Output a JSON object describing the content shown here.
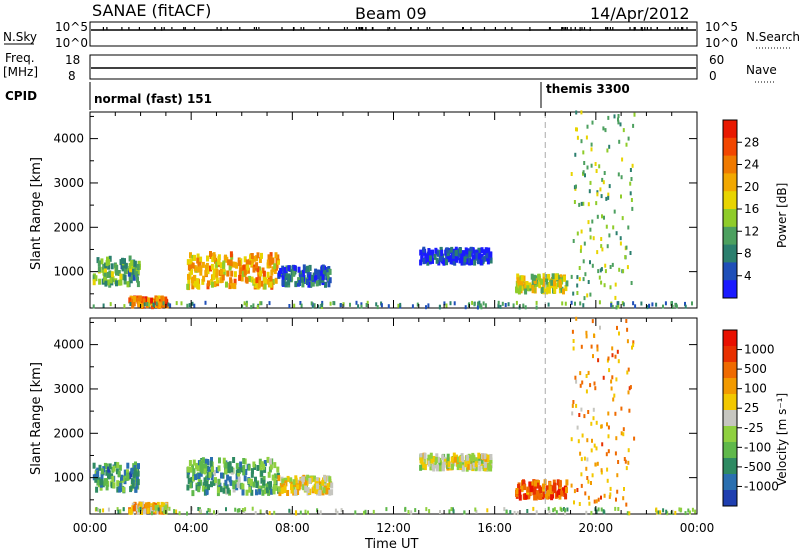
{
  "header": {
    "station": "SANAE (fitACF)",
    "beam": "Beam 09",
    "date": "14/Apr/2012"
  },
  "status_panels": {
    "nsky_label": "N.Sky",
    "nsearch_label": "N.Search",
    "nsky_ticks": [
      "10^5",
      "10^0"
    ],
    "nsearch_ticks": [
      "10^5",
      "10^0"
    ],
    "freq_label": "Freq.",
    "freq_unit": "[MHz]",
    "freq_ticks": [
      "18",
      "8"
    ],
    "nave_label": "Nave",
    "nave_ticks": [
      "60",
      "0"
    ],
    "cpid_label": "CPID",
    "cpid_modes": [
      {
        "name": "normal (fast) 151",
        "start": "00:00"
      },
      {
        "name": "themis 3300",
        "start": "18:00"
      }
    ]
  },
  "chart_data": [
    {
      "type": "heatmap",
      "name": "power",
      "xlabel": "Time UT",
      "ylabel": "Slant Range [km]",
      "x_ticks": [
        "00:00",
        "04:00",
        "08:00",
        "12:00",
        "16:00",
        "20:00",
        "00:00"
      ],
      "x_range_hours": [
        0,
        24
      ],
      "y_range": [
        180,
        4600
      ],
      "y_ticks": [
        1000,
        2000,
        3000,
        4000
      ],
      "colorbar": {
        "label": "Power [dB]",
        "ticks": [
          "4",
          "8",
          "12",
          "16",
          "20",
          "24",
          "28"
        ],
        "colors": [
          "#1a1aff",
          "#1f4fb8",
          "#2b7f6e",
          "#4ca05f",
          "#8fcc2a",
          "#e8d400",
          "#f2a800",
          "#ef7a00",
          "#f24600",
          "#e81800"
        ]
      },
      "regions": [
        {
          "t": [
            0.1,
            1.9
          ],
          "r": [
            700,
            1300
          ],
          "level": 0.35
        },
        {
          "t": [
            3.8,
            7.4
          ],
          "r": [
            650,
            1400
          ],
          "level": 0.65
        },
        {
          "t": [
            7.4,
            9.5
          ],
          "r": [
            700,
            1100
          ],
          "level": 0.2
        },
        {
          "t": [
            13.0,
            15.8
          ],
          "r": [
            1200,
            1500
          ],
          "level": 0.1
        },
        {
          "t": [
            16.8,
            18.8
          ],
          "r": [
            550,
            900
          ],
          "level": 0.5
        },
        {
          "t": [
            1.5,
            3.0
          ],
          "r": [
            220,
            400
          ],
          "level": 0.75
        },
        {
          "t": [
            0.0,
            24.0
          ],
          "r": [
            190,
            300
          ],
          "level": 0.3
        },
        {
          "t": [
            19.0,
            21.5
          ],
          "r": [
            300,
            4600
          ],
          "level": 0.4
        }
      ]
    },
    {
      "type": "heatmap",
      "name": "velocity",
      "xlabel": "Time UT",
      "ylabel": "Slant Range [km]",
      "x_ticks": [
        "00:00",
        "04:00",
        "08:00",
        "12:00",
        "16:00",
        "20:00",
        "00:00"
      ],
      "x_range_hours": [
        0,
        24
      ],
      "y_range": [
        180,
        4600
      ],
      "y_ticks": [
        1000,
        2000,
        3000,
        4000
      ],
      "colorbar": {
        "label": "Velocity [m s⁻¹]",
        "ticks": [
          "1000",
          "500",
          "100",
          "25",
          "-25",
          "-100",
          "-500",
          "-1000"
        ],
        "colors": [
          "#1f3fb0",
          "#2a6fb0",
          "#2e8a62",
          "#5fb84a",
          "#8fd040",
          "#c6c6c0",
          "#f2c800",
          "#f29a00",
          "#ef6a00",
          "#e83000",
          "#e81000"
        ]
      },
      "regions": [
        {
          "t": [
            0.1,
            1.9
          ],
          "r": [
            700,
            1300
          ],
          "level": 0.25
        },
        {
          "t": [
            3.8,
            7.4
          ],
          "r": [
            650,
            1400
          ],
          "level": 0.3
        },
        {
          "t": [
            7.4,
            9.5
          ],
          "r": [
            650,
            1000
          ],
          "level": 0.55
        },
        {
          "t": [
            13.0,
            15.8
          ],
          "r": [
            1200,
            1500
          ],
          "level": 0.5
        },
        {
          "t": [
            16.8,
            18.8
          ],
          "r": [
            550,
            900
          ],
          "level": 0.8
        },
        {
          "t": [
            1.5,
            3.0
          ],
          "r": [
            220,
            400
          ],
          "level": 0.6
        },
        {
          "t": [
            0.0,
            24.0
          ],
          "r": [
            190,
            300
          ],
          "level": 0.4
        },
        {
          "t": [
            19.0,
            21.5
          ],
          "r": [
            300,
            4600
          ],
          "level": 0.7
        }
      ]
    }
  ]
}
